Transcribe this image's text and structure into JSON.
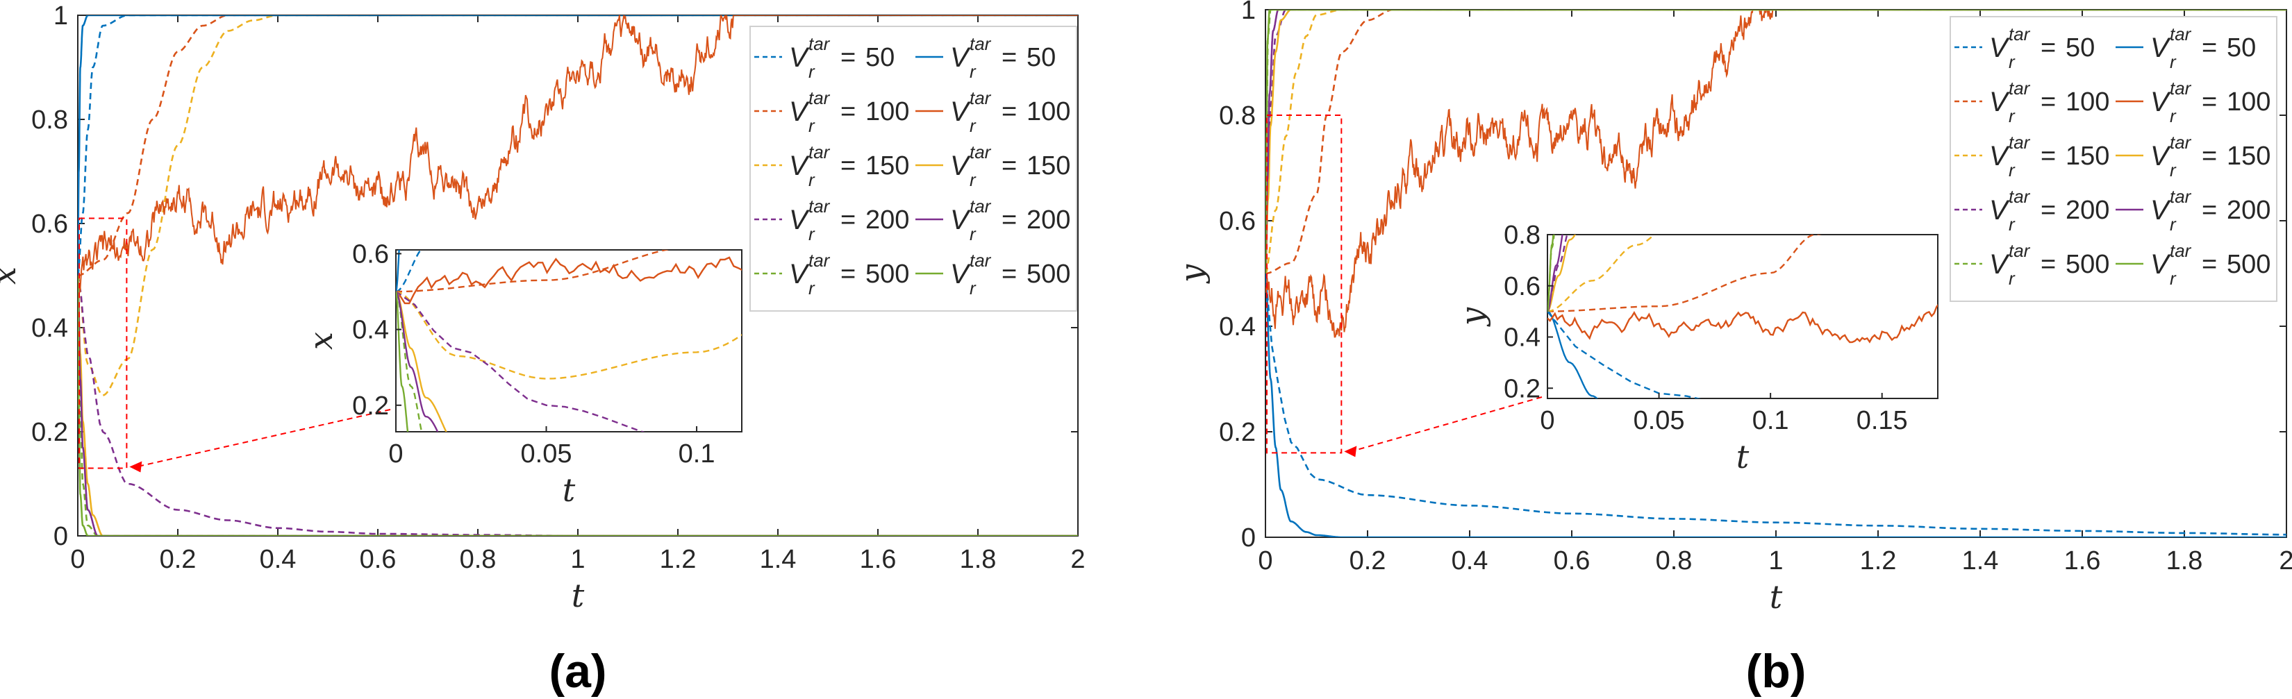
{
  "colors": {
    "c50": "#0072BD",
    "c100": "#D95319",
    "c150": "#EDB120",
    "c200": "#7E2F8E",
    "c500": "#77AC30",
    "axis": "#262626",
    "zoom": "#FF0000"
  },
  "legend": {
    "entries": [
      {
        "v": "50"
      },
      {
        "v": "100"
      },
      {
        "v": "150"
      },
      {
        "v": "200"
      },
      {
        "v": "500"
      }
    ],
    "V": "V",
    "sup": "tar",
    "sub": "r",
    "eq": "="
  },
  "chart_data": [
    {
      "panel": "(a)",
      "type": "line",
      "xlabel": "t",
      "ylabel": "x",
      "xlim": [
        0,
        2
      ],
      "ylim": [
        0,
        1
      ],
      "xticks": [
        "0",
        "0.2",
        "0.4",
        "0.6",
        "0.8",
        "1",
        "1.2",
        "1.4",
        "1.6",
        "1.8",
        "2"
      ],
      "yticks": [
        "0",
        "0.2",
        "0.4",
        "0.6",
        "0.8",
        "1"
      ],
      "legend_position": "top-right",
      "series": [
        {
          "name": "V_r^tar = 50 (dashed)",
          "style": "dashed",
          "color": "#0072BD",
          "x": [
            0,
            0.01,
            0.02,
            0.03,
            0.05,
            0.1
          ],
          "y": [
            0.5,
            0.62,
            0.78,
            0.9,
            0.98,
            1.0
          ]
        },
        {
          "name": "V_r^tar = 100 (dashed)",
          "style": "dashed",
          "color": "#D95319",
          "x": [
            0,
            0.05,
            0.1,
            0.15,
            0.2,
            0.25,
            0.3
          ],
          "y": [
            0.5,
            0.53,
            0.62,
            0.8,
            0.93,
            0.98,
            1.0
          ]
        },
        {
          "name": "V_r^tar = 150 (dashed)",
          "style": "dashed",
          "color": "#EDB120",
          "x": [
            0,
            0.02,
            0.05,
            0.1,
            0.15,
            0.2,
            0.25,
            0.3,
            0.35,
            0.4
          ],
          "y": [
            0.5,
            0.33,
            0.27,
            0.34,
            0.55,
            0.75,
            0.9,
            0.97,
            0.99,
            1.0
          ]
        },
        {
          "name": "V_r^tar = 200 (dashed)",
          "style": "dashed",
          "color": "#7E2F8E",
          "x": [
            0,
            0.02,
            0.05,
            0.1,
            0.2,
            0.3,
            0.4,
            0.5,
            0.6,
            0.8,
            1.0
          ],
          "y": [
            0.5,
            0.35,
            0.2,
            0.1,
            0.05,
            0.03,
            0.015,
            0.008,
            0.004,
            0.002,
            0.0
          ]
        },
        {
          "name": "V_r^tar = 500 (dashed)",
          "style": "dashed",
          "color": "#77AC30",
          "x": [
            0,
            0.005,
            0.01,
            0.02,
            0.04
          ],
          "y": [
            0.5,
            0.25,
            0.1,
            0.02,
            0.0
          ]
        },
        {
          "name": "V_r^tar = 50 (solid)",
          "style": "solid",
          "color": "#0072BD",
          "x": [
            0,
            0.002,
            0.005,
            0.01,
            0.02
          ],
          "y": [
            0.5,
            0.7,
            0.9,
            0.98,
            1.0
          ]
        },
        {
          "name": "V_r^tar = 100 (solid)",
          "style": "noisy",
          "color": "#D95319",
          "x": [
            0,
            0.1,
            0.2,
            0.3,
            0.4,
            0.5,
            0.6,
            0.7,
            0.8,
            0.9,
            1.0,
            1.1,
            1.2,
            1.3,
            1.33
          ],
          "y": [
            0.5,
            0.55,
            0.65,
            0.58,
            0.62,
            0.7,
            0.66,
            0.72,
            0.63,
            0.8,
            0.9,
            0.95,
            0.88,
            1.0,
            1.0
          ]
        },
        {
          "name": "V_r^tar = 150 (solid)",
          "style": "solid",
          "color": "#EDB120",
          "x": [
            0,
            0.005,
            0.01,
            0.02,
            0.03,
            0.05
          ],
          "y": [
            0.5,
            0.35,
            0.22,
            0.1,
            0.04,
            0.0
          ]
        },
        {
          "name": "V_r^tar = 200 (solid)",
          "style": "solid",
          "color": "#7E2F8E",
          "x": [
            0,
            0.005,
            0.01,
            0.02,
            0.04
          ],
          "y": [
            0.5,
            0.3,
            0.17,
            0.05,
            0.0
          ]
        },
        {
          "name": "V_r^tar = 500 (solid)",
          "style": "solid",
          "color": "#77AC30",
          "x": [
            0,
            0.002,
            0.005,
            0.01,
            0.02
          ],
          "y": [
            0.5,
            0.25,
            0.08,
            0.02,
            0.0
          ]
        }
      ],
      "inset": {
        "xlabel": "t",
        "ylabel": "x",
        "xlim": [
          0,
          0.115
        ],
        "ylim": [
          0.13,
          0.61
        ],
        "xticks": [
          "0",
          "0.05",
          "0.1"
        ],
        "yticks": [
          "0.2",
          "0.4",
          "0.6"
        ]
      }
    },
    {
      "panel": "(b)",
      "type": "line",
      "xlabel": "t",
      "ylabel": "y",
      "xlim": [
        0,
        2
      ],
      "ylim": [
        0,
        1
      ],
      "xticks": [
        "0",
        "0.2",
        "0.4",
        "0.6",
        "0.8",
        "1",
        "1.2",
        "1.4",
        "1.6",
        "1.8",
        "2"
      ],
      "yticks": [
        "0",
        "0.2",
        "0.4",
        "0.6",
        "0.8",
        "1"
      ],
      "legend_position": "top-right",
      "series": [
        {
          "name": "V_r^tar = 50 (dashed)",
          "style": "dashed",
          "color": "#0072BD",
          "x": [
            0,
            0.02,
            0.05,
            0.1,
            0.2,
            0.4,
            0.6,
            0.8,
            1.0,
            1.2,
            1.4,
            1.6,
            1.8,
            2.0
          ],
          "y": [
            0.5,
            0.3,
            0.18,
            0.11,
            0.08,
            0.06,
            0.045,
            0.035,
            0.028,
            0.022,
            0.016,
            0.012,
            0.008,
            0.005
          ]
        },
        {
          "name": "V_r^tar = 100 (dashed)",
          "style": "dashed",
          "color": "#D95319",
          "x": [
            0,
            0.05,
            0.1,
            0.12,
            0.15,
            0.2,
            0.25
          ],
          "y": [
            0.5,
            0.52,
            0.65,
            0.8,
            0.92,
            0.98,
            1.0
          ]
        },
        {
          "name": "V_r^tar = 150 (dashed)",
          "style": "dashed",
          "color": "#EDB120",
          "x": [
            0,
            0.02,
            0.04,
            0.06,
            0.08,
            0.1,
            0.15
          ],
          "y": [
            0.5,
            0.62,
            0.76,
            0.88,
            0.95,
            0.99,
            1.0
          ]
        },
        {
          "name": "V_r^tar = 200 (dashed)",
          "style": "dashed",
          "color": "#7E2F8E",
          "x": [
            0,
            0.005,
            0.01,
            0.02,
            0.04
          ],
          "y": [
            0.5,
            0.68,
            0.82,
            0.95,
            1.0
          ]
        },
        {
          "name": "V_r^tar = 500 (dashed)",
          "style": "dashed",
          "color": "#77AC30",
          "x": [
            0,
            0.002,
            0.005,
            0.01
          ],
          "y": [
            0.5,
            0.75,
            0.95,
            1.0
          ]
        },
        {
          "name": "V_r^tar = 50 (solid)",
          "style": "solid",
          "color": "#0072BD",
          "x": [
            0,
            0.01,
            0.02,
            0.03,
            0.05,
            0.08,
            0.1,
            0.15
          ],
          "y": [
            0.5,
            0.3,
            0.17,
            0.09,
            0.03,
            0.01,
            0.004,
            0.0
          ]
        },
        {
          "name": "V_r^tar = 100 (solid)",
          "style": "noisy",
          "color": "#D95319",
          "x": [
            0,
            0.05,
            0.1,
            0.15,
            0.2,
            0.3,
            0.4,
            0.5,
            0.6,
            0.7,
            0.8,
            0.9,
            0.95,
            1.0
          ],
          "y": [
            0.48,
            0.44,
            0.45,
            0.44,
            0.55,
            0.7,
            0.77,
            0.74,
            0.78,
            0.72,
            0.78,
            0.9,
            1.0,
            1.0
          ]
        },
        {
          "name": "V_r^tar = 150 (solid)",
          "style": "solid",
          "color": "#EDB120",
          "x": [
            0,
            0.005,
            0.01,
            0.02,
            0.03,
            0.05
          ],
          "y": [
            0.5,
            0.64,
            0.78,
            0.92,
            0.98,
            1.0
          ]
        },
        {
          "name": "V_r^tar = 200 (solid)",
          "style": "solid",
          "color": "#7E2F8E",
          "x": [
            0,
            0.004,
            0.008,
            0.015,
            0.025
          ],
          "y": [
            0.5,
            0.68,
            0.84,
            0.96,
            1.0
          ]
        },
        {
          "name": "V_r^tar = 500 (solid)",
          "style": "solid",
          "color": "#77AC30",
          "x": [
            0,
            0.002,
            0.004,
            0.008
          ],
          "y": [
            0.5,
            0.76,
            0.94,
            1.0
          ]
        }
      ],
      "inset": {
        "xlabel": "t",
        "ylabel": "y",
        "xlim": [
          0,
          0.175
        ],
        "ylim": [
          0.16,
          0.8
        ],
        "xticks": [
          "0",
          "0.05",
          "0.1",
          "0.15"
        ],
        "yticks": [
          "0.2",
          "0.4",
          "0.6",
          "0.8"
        ]
      }
    }
  ]
}
